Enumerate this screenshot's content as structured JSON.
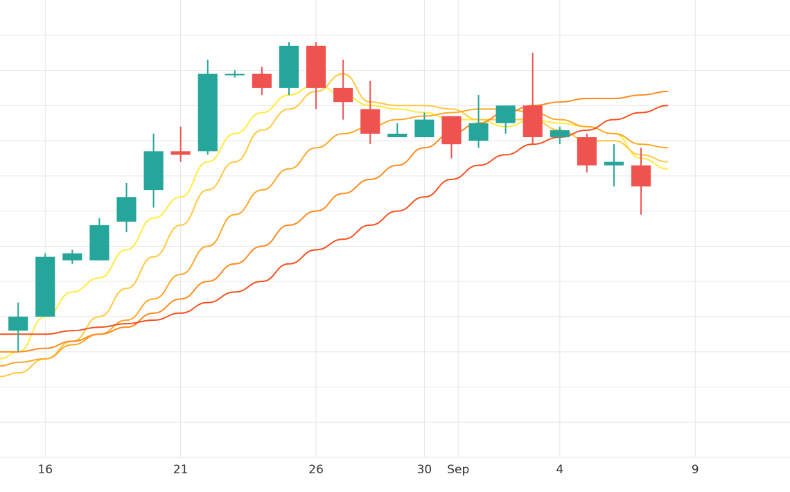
{
  "chart_data": {
    "type": "candlestick",
    "title": "",
    "xlabel": "",
    "ylabel": "",
    "grid": true,
    "legend": "none",
    "x_ticks": [
      {
        "day": 16,
        "label": "16"
      },
      {
        "day": 21,
        "label": "21"
      },
      {
        "day": 26,
        "label": "26"
      },
      {
        "day": 30,
        "label": "30"
      },
      {
        "day": 31.25,
        "label": "Sep"
      },
      {
        "day": 35,
        "label": "4"
      },
      {
        "day": 40,
        "label": "9"
      }
    ],
    "x_range": [
      14.33,
      43.5
    ],
    "y_range": [
      0,
      13
    ],
    "y_gridlines": [
      1,
      2,
      3,
      4,
      5,
      6,
      7,
      8,
      9,
      10,
      11,
      12
    ],
    "candles": [
      {
        "day": 15,
        "open": 3.6,
        "high": 4.4,
        "low": 3.0,
        "close": 4.0
      },
      {
        "day": 16,
        "open": 4.0,
        "high": 5.8,
        "low": 4.0,
        "close": 5.7
      },
      {
        "day": 17,
        "open": 5.6,
        "high": 5.9,
        "low": 5.5,
        "close": 5.8
      },
      {
        "day": 18,
        "open": 5.6,
        "high": 6.8,
        "low": 5.6,
        "close": 6.6
      },
      {
        "day": 19,
        "open": 6.7,
        "high": 7.8,
        "low": 6.4,
        "close": 7.4
      },
      {
        "day": 20,
        "open": 7.6,
        "high": 9.2,
        "low": 7.1,
        "close": 8.7
      },
      {
        "day": 21,
        "open": 8.7,
        "high": 9.4,
        "low": 8.4,
        "close": 8.6
      },
      {
        "day": 22,
        "open": 8.7,
        "high": 11.3,
        "low": 8.6,
        "close": 10.9
      },
      {
        "day": 23,
        "open": 10.9,
        "high": 11.0,
        "low": 10.8,
        "close": 10.9
      },
      {
        "day": 24,
        "open": 10.9,
        "high": 11.1,
        "low": 10.3,
        "close": 10.5
      },
      {
        "day": 25,
        "open": 10.5,
        "high": 11.8,
        "low": 10.3,
        "close": 11.7
      },
      {
        "day": 26,
        "open": 11.7,
        "high": 11.8,
        "low": 9.9,
        "close": 10.5
      },
      {
        "day": 27,
        "open": 10.5,
        "high": 11.3,
        "low": 9.6,
        "close": 10.1
      },
      {
        "day": 28,
        "open": 9.9,
        "high": 10.7,
        "low": 8.9,
        "close": 9.2
      },
      {
        "day": 29,
        "open": 9.1,
        "high": 9.5,
        "low": 9.1,
        "close": 9.2
      },
      {
        "day": 30,
        "open": 9.1,
        "high": 9.8,
        "low": 9.1,
        "close": 9.6
      },
      {
        "day": 31,
        "open": 9.7,
        "high": 9.7,
        "low": 8.5,
        "close": 8.9
      },
      {
        "day": 32,
        "open": 9.0,
        "high": 10.3,
        "low": 8.8,
        "close": 9.5
      },
      {
        "day": 33,
        "open": 9.5,
        "high": 10.0,
        "low": 9.2,
        "close": 10.0
      },
      {
        "day": 34,
        "open": 10.0,
        "high": 11.5,
        "low": 8.9,
        "close": 9.1
      },
      {
        "day": 35,
        "open": 9.1,
        "high": 9.4,
        "low": 8.9,
        "close": 9.3
      },
      {
        "day": 36,
        "open": 9.1,
        "high": 9.2,
        "low": 8.1,
        "close": 8.3
      },
      {
        "day": 37,
        "open": 8.3,
        "high": 8.9,
        "low": 7.7,
        "close": 8.4
      },
      {
        "day": 38,
        "open": 8.3,
        "high": 8.8,
        "low": 6.9,
        "close": 7.7
      }
    ],
    "colors": {
      "up": "#26a69a",
      "down": "#ef5350",
      "grid": "#e6e6e6"
    },
    "moving_averages": [
      {
        "color": "#ffeb3b",
        "points": [
          [
            14.33,
            2.8
          ],
          [
            15,
            3.0
          ],
          [
            16,
            4.0
          ],
          [
            17,
            4.7
          ],
          [
            18,
            5.1
          ],
          [
            19,
            5.9
          ],
          [
            20,
            6.8
          ],
          [
            21,
            7.4
          ],
          [
            22,
            8.4
          ],
          [
            23,
            9.2
          ],
          [
            24,
            9.8
          ],
          [
            25,
            10.3
          ],
          [
            26,
            10.6
          ],
          [
            27,
            10.3
          ],
          [
            28,
            10.0
          ],
          [
            29,
            9.9
          ],
          [
            30,
            9.8
          ],
          [
            31,
            9.6
          ],
          [
            32,
            9.6
          ],
          [
            33,
            9.4
          ],
          [
            34,
            9.6
          ],
          [
            35,
            9.5
          ],
          [
            36,
            9.4
          ],
          [
            37,
            9.2
          ],
          [
            38,
            8.5
          ],
          [
            39,
            8.2
          ]
        ]
      },
      {
        "color": "#ffc83d",
        "points": [
          [
            14.33,
            2.3
          ],
          [
            15,
            2.4
          ],
          [
            16,
            2.8
          ],
          [
            17,
            3.3
          ],
          [
            18,
            4.0
          ],
          [
            19,
            4.8
          ],
          [
            20,
            5.7
          ],
          [
            21,
            6.6
          ],
          [
            22,
            7.6
          ],
          [
            23,
            8.4
          ],
          [
            24,
            9.3
          ],
          [
            25,
            9.9
          ],
          [
            26,
            10.4
          ],
          [
            27,
            10.9
          ],
          [
            28,
            10.1
          ],
          [
            29,
            10.0
          ],
          [
            30,
            10.0
          ],
          [
            31,
            9.9
          ],
          [
            32,
            9.6
          ],
          [
            33,
            9.6
          ],
          [
            34,
            9.6
          ],
          [
            35,
            9.3
          ],
          [
            36,
            9.0
          ],
          [
            37,
            9.0
          ],
          [
            38,
            8.6
          ],
          [
            39,
            8.4
          ]
        ]
      },
      {
        "color": "#ffa726",
        "points": [
          [
            14.33,
            2.6
          ],
          [
            15,
            2.7
          ],
          [
            16,
            2.8
          ],
          [
            17,
            3.2
          ],
          [
            18,
            3.5
          ],
          [
            19,
            3.9
          ],
          [
            20,
            4.5
          ],
          [
            21,
            5.2
          ],
          [
            22,
            6.0
          ],
          [
            23,
            6.9
          ],
          [
            24,
            7.6
          ],
          [
            25,
            8.2
          ],
          [
            26,
            8.8
          ],
          [
            27,
            9.2
          ],
          [
            28,
            9.4
          ],
          [
            29,
            9.6
          ],
          [
            30,
            9.7
          ],
          [
            31,
            9.8
          ],
          [
            32,
            9.9
          ],
          [
            33,
            9.9
          ],
          [
            34,
            9.8
          ],
          [
            35,
            9.6
          ],
          [
            36,
            9.4
          ],
          [
            37,
            9.2
          ],
          [
            38,
            8.9
          ],
          [
            39,
            8.8
          ]
        ]
      },
      {
        "color": "#ff8a1e",
        "points": [
          [
            14.33,
            3.0
          ],
          [
            15,
            3.0
          ],
          [
            16,
            3.1
          ],
          [
            17,
            3.3
          ],
          [
            18,
            3.5
          ],
          [
            19,
            3.7
          ],
          [
            20,
            4.1
          ],
          [
            21,
            4.5
          ],
          [
            22,
            5.0
          ],
          [
            23,
            5.5
          ],
          [
            24,
            6.0
          ],
          [
            25,
            6.6
          ],
          [
            26,
            7.0
          ],
          [
            27,
            7.5
          ],
          [
            28,
            7.9
          ],
          [
            29,
            8.3
          ],
          [
            30,
            8.8
          ],
          [
            31,
            9.2
          ],
          [
            32,
            9.5
          ],
          [
            33,
            9.8
          ],
          [
            34,
            10.0
          ],
          [
            35,
            10.1
          ],
          [
            36,
            10.2
          ],
          [
            37,
            10.2
          ],
          [
            38,
            10.3
          ],
          [
            39,
            10.4
          ]
        ]
      },
      {
        "color": "#f4511e",
        "points": [
          [
            14.33,
            3.5
          ],
          [
            15,
            3.5
          ],
          [
            16,
            3.5
          ],
          [
            17,
            3.6
          ],
          [
            18,
            3.7
          ],
          [
            19,
            3.8
          ],
          [
            20,
            3.9
          ],
          [
            21,
            4.1
          ],
          [
            22,
            4.4
          ],
          [
            23,
            4.7
          ],
          [
            24,
            5.0
          ],
          [
            25,
            5.5
          ],
          [
            26,
            5.9
          ],
          [
            27,
            6.2
          ],
          [
            28,
            6.6
          ],
          [
            29,
            7.0
          ],
          [
            30,
            7.4
          ],
          [
            31,
            7.9
          ],
          [
            32,
            8.3
          ],
          [
            33,
            8.6
          ],
          [
            34,
            8.9
          ],
          [
            35,
            9.1
          ],
          [
            36,
            9.3
          ],
          [
            37,
            9.6
          ],
          [
            38,
            9.8
          ],
          [
            39,
            10.0
          ]
        ]
      }
    ]
  }
}
